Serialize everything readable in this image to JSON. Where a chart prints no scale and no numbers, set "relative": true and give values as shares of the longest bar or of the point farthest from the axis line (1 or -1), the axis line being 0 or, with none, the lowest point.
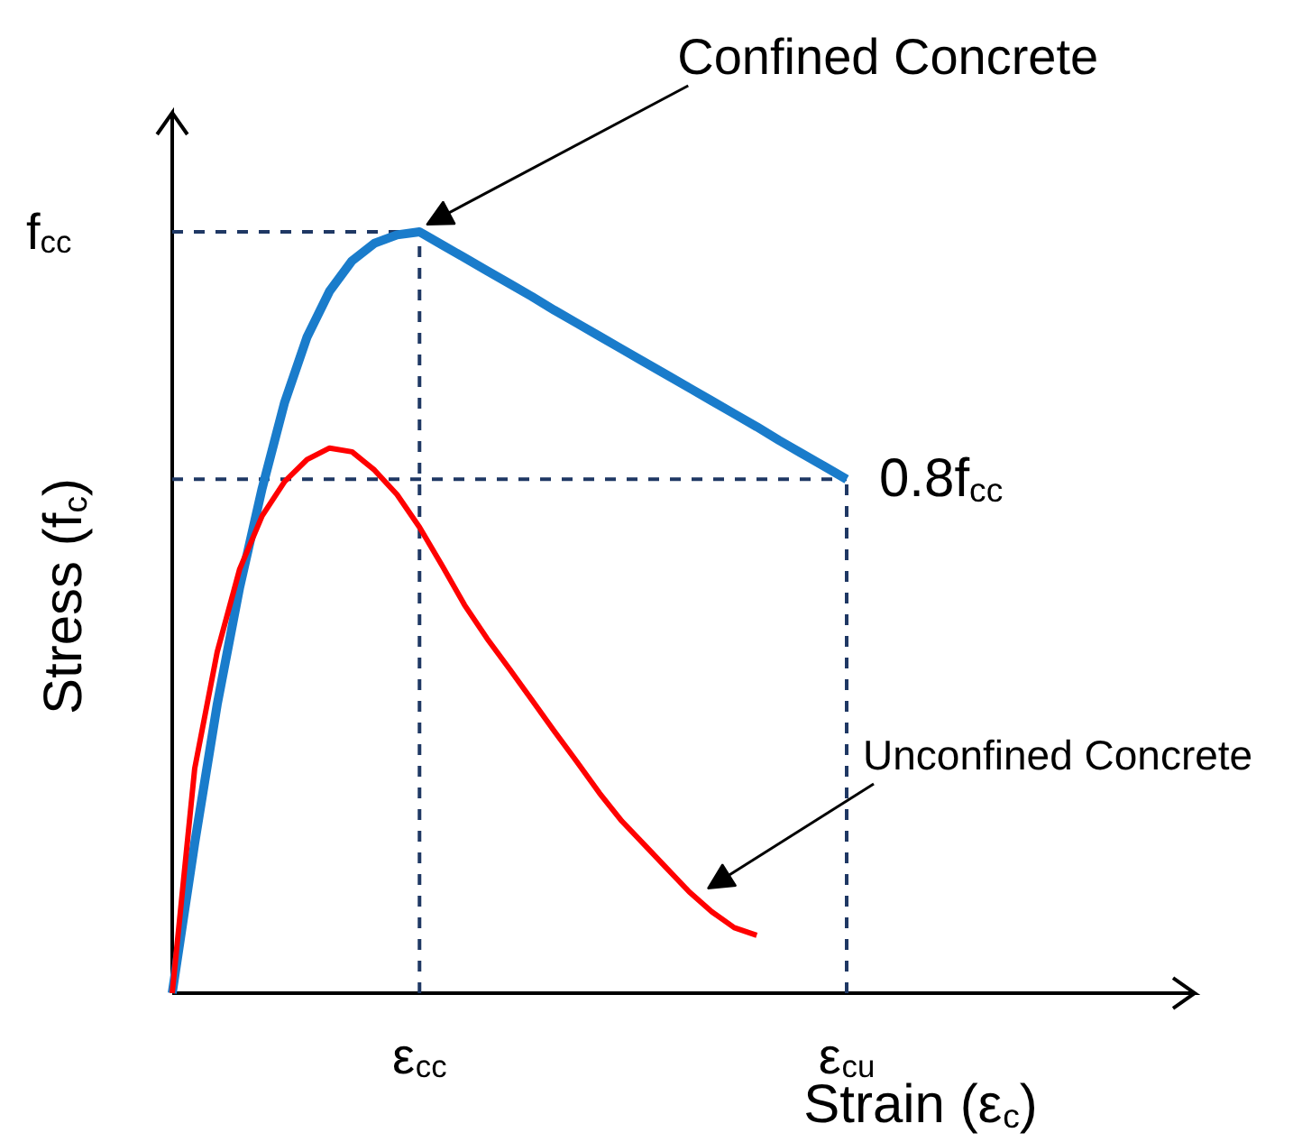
{
  "chart_data": {
    "type": "line",
    "relative": true,
    "line_style": "solid",
    "xlabel": "Strain (ε$_{c}$)",
    "ylabel": "Stress (f$_{c}$)",
    "categories": [
      null,
      null,
      null,
      null,
      null,
      null,
      null,
      null,
      null,
      null,
      null,
      "ε$_{cc}$",
      null,
      null,
      null,
      null,
      null,
      null,
      null,
      null,
      null,
      null,
      null,
      null,
      null,
      null,
      null,
      null,
      null,
      null,
      "ε$_{cu}$"
    ],
    "series": [
      {
        "color": "#1a7ccb",
        "values": [
          0,
          0.197,
          0.379,
          0.533,
          0.663,
          0.776,
          0.862,
          0.922,
          0.962,
          0.985,
          0.996,
          1,
          0.983,
          0.966,
          0.949,
          0.932,
          0.915,
          0.897,
          0.88,
          0.863,
          0.846,
          0.829,
          0.812,
          0.795,
          0.778,
          0.761,
          0.744,
          0.726,
          0.709,
          0.692,
          0.675
        ]
      },
      {
        "color": "#ff0000",
        "values": [
          0,
          0.295,
          0.448,
          0.557,
          0.627,
          0.672,
          0.701,
          0.716,
          0.711,
          0.687,
          0.655,
          0.612,
          0.562,
          0.51,
          0.466,
          0.426,
          0.385,
          0.344,
          0.304,
          0.263,
          0.226,
          0.195,
          0.164,
          0.133,
          0.107,
          0.086,
          0.076,
          null,
          null,
          null,
          null
        ]
      }
    ],
    "ref_lines": [
      {
        "axis": "y",
        "value": 1,
        "label": "f$_{cc}$",
        "color": "#1f3864",
        "line_style": "dashed"
      },
      {
        "axis": "y",
        "value": 0.675,
        "color": "#1f3864",
        "line_style": "dashed"
      },
      {
        "axis": "x",
        "value": "ε$_{cc}$",
        "color": "#1f3864",
        "line_style": "dashed"
      },
      {
        "axis": "x",
        "value": "ε$_{cu}$",
        "color": "#1f3864",
        "line_style": "dashed"
      }
    ],
    "annotations": [
      {
        "text": "Confined Concrete",
        "x": "ε$_{cc}$",
        "y": 1
      },
      {
        "text": "0.8f$_{cc}$",
        "x": "ε$_{cu}$",
        "y": 0.675
      },
      "Unconfined Concrete"
    ]
  }
}
